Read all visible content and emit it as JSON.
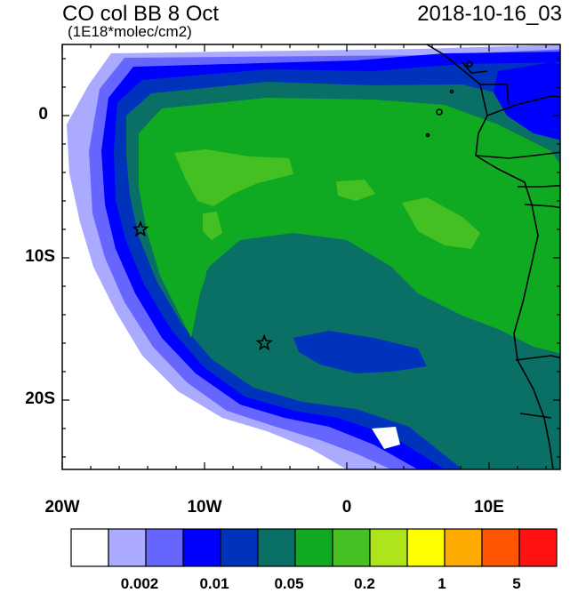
{
  "title_left": "CO col BB 8 Oct",
  "title_right": "2018-10-16_03",
  "subtitle": "(1E18*molec/cm2)",
  "lat_labels": [
    "0",
    "10S",
    "20S"
  ],
  "lon_labels": [
    "20W",
    "10W",
    "0",
    "10E"
  ],
  "colorbar": {
    "colors": [
      "#ffffff",
      "#aaaaff",
      "#6666ff",
      "#0000ff",
      "#0033bb",
      "#0a7066",
      "#10aa22",
      "#44c022",
      "#aee51a",
      "#ffff00",
      "#ffaa00",
      "#ff5500",
      "#ff1111"
    ],
    "labels": [
      "0.002",
      "0.01",
      "0.05",
      "0.2",
      "1",
      "5"
    ]
  },
  "markers": [
    {
      "name": "star-marker-1",
      "lon": -14.5,
      "lat": -8
    },
    {
      "name": "star-marker-2",
      "lon": -5.8,
      "lat": -16
    }
  ]
}
